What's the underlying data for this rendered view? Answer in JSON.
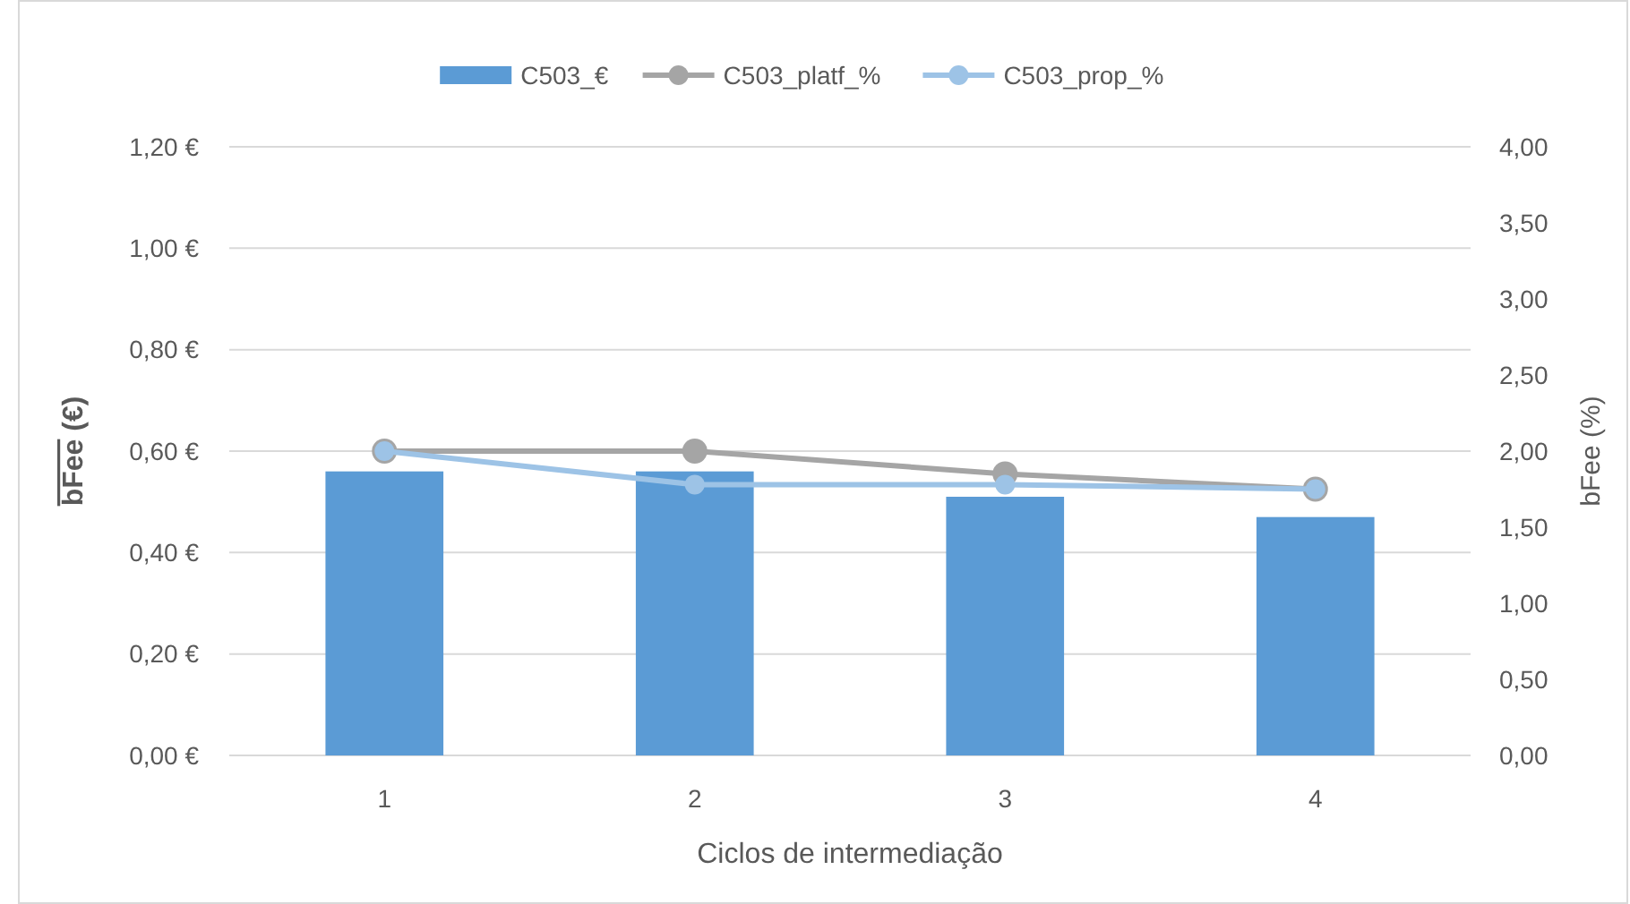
{
  "chart_data": {
    "type": "bar",
    "xlabel": "Ciclos de intermediação",
    "ylabel": "bFee (€)",
    "y2label": "bFee (%)",
    "categories": [
      "1",
      "2",
      "3",
      "4"
    ],
    "series": [
      {
        "name": "C503_€",
        "color": "#5b9bd5",
        "values": [
          0.56,
          0.56,
          0.51,
          0.47
        ]
      },
      {
        "name": "C503_platf_%",
        "type": "line",
        "axis": "y2",
        "color": "#a5a5a5",
        "marker": "circle",
        "values": [
          2.0,
          2.0,
          1.85,
          1.75
        ]
      },
      {
        "name": "C503_prop_%",
        "type": "line",
        "axis": "y2",
        "color": "#9dc3e6",
        "marker": "circle",
        "values": [
          2.0,
          1.78,
          1.78,
          1.75
        ]
      }
    ],
    "ylim": [
      0,
      1.2
    ],
    "yticks": [
      {
        "value": 0,
        "label": "0,00 €"
      },
      {
        "value": 0.2,
        "label": "0,20 €"
      },
      {
        "value": 0.4,
        "label": "0,40 €"
      },
      {
        "value": 0.6,
        "label": "0,60 €"
      },
      {
        "value": 0.8,
        "label": "0,80 €"
      },
      {
        "value": 1.0,
        "label": "1,00 €"
      },
      {
        "value": 1.2,
        "label": "1,20 €"
      }
    ],
    "y2lim": [
      0,
      4
    ],
    "y2ticks": [
      {
        "value": 0,
        "label": "0,00"
      },
      {
        "value": 0.5,
        "label": "0,50"
      },
      {
        "value": 1,
        "label": "1,00"
      },
      {
        "value": 1.5,
        "label": "1,50"
      },
      {
        "value": 2,
        "label": "2,00"
      },
      {
        "value": 2.5,
        "label": "2,50"
      },
      {
        "value": 3,
        "label": "3,00"
      },
      {
        "value": 3.5,
        "label": "3,50"
      },
      {
        "value": 4,
        "label": "4,00"
      }
    ],
    "grid": "y",
    "legend": "top"
  }
}
